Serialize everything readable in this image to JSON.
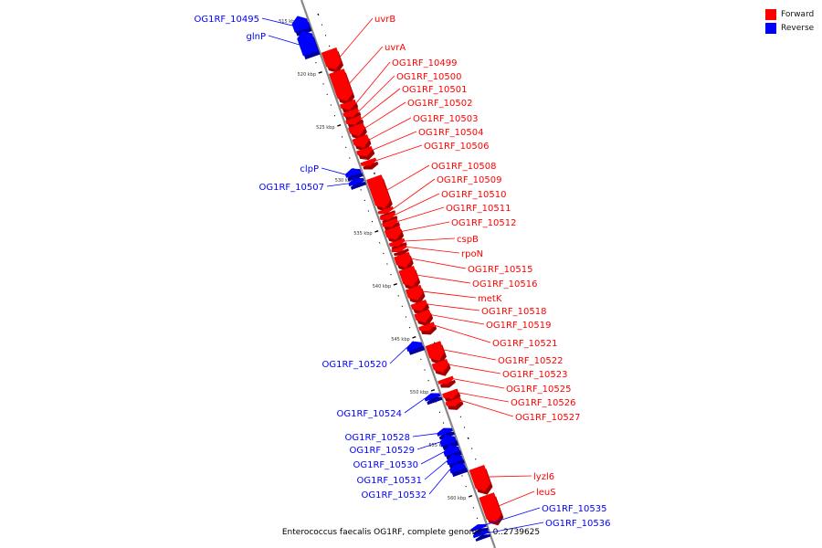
{
  "legend": {
    "forward_label": "Forward",
    "reverse_label": "Reverse",
    "forward_color": "#ff0000",
    "reverse_color": "#0000ff"
  },
  "caption": "Enterococcus faecalis OG1RF, complete genome. - 0..2739625",
  "diagram": {
    "type": "linear genome map",
    "unit": "kbp",
    "ticks": [
      {
        "kbp": 515,
        "label": "515 kbp"
      },
      {
        "kbp": 520,
        "label": "520 kbp"
      },
      {
        "kbp": 525,
        "label": "525 kbp"
      },
      {
        "kbp": 530,
        "label": "530 kbp"
      },
      {
        "kbp": 535,
        "label": "535 kbp"
      },
      {
        "kbp": 540,
        "label": "540 kbp"
      },
      {
        "kbp": 545,
        "label": "545 kbp"
      },
      {
        "kbp": 550,
        "label": "550 kbp"
      },
      {
        "kbp": 555,
        "label": "555 kbp"
      },
      {
        "kbp": 560,
        "label": "560 kbp"
      }
    ],
    "genes": [
      {
        "name": "OG1RF_10495",
        "strand": "reverse",
        "start": 514.6,
        "end": 515.9
      },
      {
        "name": "glnP",
        "strand": "reverse",
        "start": 516.0,
        "end": 518.1
      },
      {
        "name": "uvrB",
        "strand": "forward",
        "start": 518.4,
        "end": 520.2
      },
      {
        "name": "uvrA",
        "strand": "forward",
        "start": 520.4,
        "end": 523.2
      },
      {
        "name": "OG1RF_10499",
        "strand": "forward",
        "start": 523.3,
        "end": 524.0
      },
      {
        "name": "OG1RF_10500",
        "strand": "forward",
        "start": 524.1,
        "end": 524.7
      },
      {
        "name": "OG1RF_10501",
        "strand": "forward",
        "start": 524.8,
        "end": 525.4
      },
      {
        "name": "OG1RF_10502",
        "strand": "forward",
        "start": 525.5,
        "end": 526.5
      },
      {
        "name": "OG1RF_10503",
        "strand": "forward",
        "start": 526.6,
        "end": 527.6
      },
      {
        "name": "OG1RF_10504",
        "strand": "forward",
        "start": 527.7,
        "end": 528.4
      },
      {
        "name": "OG1RF_10506",
        "strand": "forward",
        "start": 528.8,
        "end": 529.3
      },
      {
        "name": "clpP",
        "strand": "reverse",
        "start": 529.0,
        "end": 529.6
      },
      {
        "name": "OG1RF_10507",
        "strand": "reverse",
        "start": 529.9,
        "end": 530.4
      },
      {
        "name": "OG1RF_10508",
        "strand": "forward",
        "start": 530.4,
        "end": 533.3
      },
      {
        "name": "OG1RF_10509",
        "strand": "forward",
        "start": 533.4,
        "end": 533.8
      },
      {
        "name": "OG1RF_10510",
        "strand": "forward",
        "start": 533.9,
        "end": 534.4
      },
      {
        "name": "OG1RF_10511",
        "strand": "forward",
        "start": 534.5,
        "end": 535.1
      },
      {
        "name": "OG1RF_10512",
        "strand": "forward",
        "start": 535.2,
        "end": 536.3
      },
      {
        "name": "cspB",
        "strand": "forward",
        "start": 536.4,
        "end": 536.9
      },
      {
        "name": "rpoN",
        "strand": "forward",
        "start": 537.0,
        "end": 537.4
      },
      {
        "name": "OG1RF_10515",
        "strand": "forward",
        "start": 537.7,
        "end": 538.9
      },
      {
        "name": "OG1RF_10516",
        "strand": "forward",
        "start": 539.0,
        "end": 540.7
      },
      {
        "name": "metK",
        "strand": "forward",
        "start": 540.8,
        "end": 542.0
      },
      {
        "name": "OG1RF_10518",
        "strand": "forward",
        "start": 542.2,
        "end": 543.0
      },
      {
        "name": "OG1RF_10519",
        "strand": "forward",
        "start": 543.1,
        "end": 544.1
      },
      {
        "name": "OG1RF_10521",
        "strand": "forward",
        "start": 544.3,
        "end": 544.9
      },
      {
        "name": "OG1RF_10520",
        "strand": "reverse",
        "start": 545.3,
        "end": 546.0
      },
      {
        "name": "OG1RF_10522",
        "strand": "forward",
        "start": 546.1,
        "end": 547.7
      },
      {
        "name": "OG1RF_10523",
        "strand": "forward",
        "start": 547.8,
        "end": 548.8
      },
      {
        "name": "OG1RF_10525",
        "strand": "forward",
        "start": 549.4,
        "end": 549.9
      },
      {
        "name": "OG1RF_10524",
        "strand": "reverse",
        "start": 550.2,
        "end": 550.7
      },
      {
        "name": "OG1RF_10526",
        "strand": "forward",
        "start": 550.6,
        "end": 551.3
      },
      {
        "name": "OG1RF_10527",
        "strand": "forward",
        "start": 551.4,
        "end": 552.0
      },
      {
        "name": "OG1RF_10528",
        "strand": "reverse",
        "start": 553.5,
        "end": 554.0
      },
      {
        "name": "OG1RF_10529",
        "strand": "reverse",
        "start": 554.1,
        "end": 555.0
      },
      {
        "name": "OG1RF_10530",
        "strand": "reverse",
        "start": 555.1,
        "end": 555.9
      },
      {
        "name": "OG1RF_10531",
        "strand": "reverse",
        "start": 556.0,
        "end": 556.7
      },
      {
        "name": "OG1RF_10532",
        "strand": "reverse",
        "start": 556.8,
        "end": 557.5
      },
      {
        "name": "lyzl6",
        "strand": "forward",
        "start": 557.8,
        "end": 560.0
      },
      {
        "name": "leuS",
        "strand": "forward",
        "start": 560.4,
        "end": 562.9
      },
      {
        "name": "OG1RF_10535",
        "strand": "reverse",
        "start": 562.6,
        "end": 563.0
      },
      {
        "name": "OG1RF_10536",
        "strand": "reverse",
        "start": 563.2,
        "end": 563.6
      }
    ]
  }
}
